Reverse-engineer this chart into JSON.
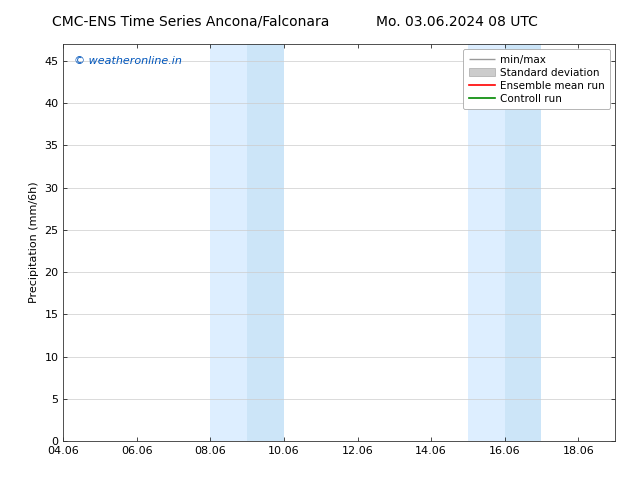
{
  "title_left": "CMC-ENS Time Series Ancona/Falconara",
  "title_right": "Mo. 03.06.2024 08 UTC",
  "ylabel": "Precipitation (mm/6h)",
  "xlabel": "",
  "ylim": [
    0,
    47
  ],
  "yticks": [
    0,
    5,
    10,
    15,
    20,
    25,
    30,
    35,
    40,
    45
  ],
  "xlim": [
    0,
    15
  ],
  "xtick_positions": [
    0,
    2,
    4,
    6,
    8,
    10,
    12,
    14
  ],
  "xtick_labels": [
    "04.06",
    "06.06",
    "08.06",
    "10.06",
    "12.06",
    "14.06",
    "16.06",
    "18.06"
  ],
  "shaded_bands": [
    {
      "xmin": 4.0,
      "xmax": 5.0,
      "color": "#ddeeff"
    },
    {
      "xmin": 5.0,
      "xmax": 6.0,
      "color": "#cce5f8"
    },
    {
      "xmin": 11.0,
      "xmax": 12.0,
      "color": "#ddeeff"
    },
    {
      "xmin": 12.0,
      "xmax": 13.0,
      "color": "#cce5f8"
    }
  ],
  "watermark": "© weatheronline.in",
  "watermark_color": "#0055bb",
  "legend_items": [
    {
      "label": "min/max",
      "color": "#aaaaaa",
      "type": "line_caps"
    },
    {
      "label": "Standard deviation",
      "color": "#cccccc",
      "type": "fill"
    },
    {
      "label": "Ensemble mean run",
      "color": "#ff0000",
      "type": "line"
    },
    {
      "label": "Controll run",
      "color": "#008800",
      "type": "line"
    }
  ],
  "background_color": "#ffffff",
  "title_fontsize": 10,
  "axis_label_fontsize": 8,
  "tick_fontsize": 8,
  "legend_fontsize": 7.5,
  "watermark_fontsize": 8
}
